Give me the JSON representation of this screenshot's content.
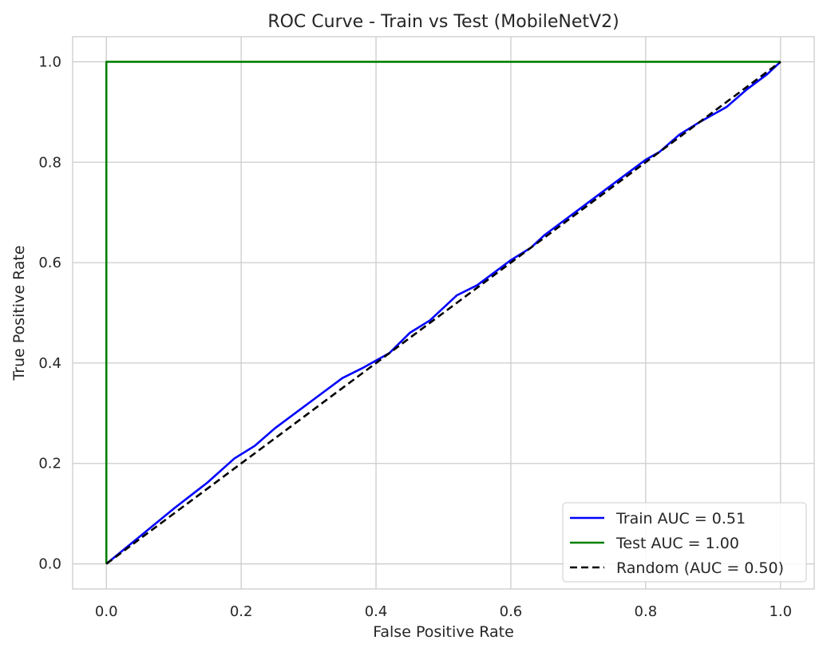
{
  "chart_data": {
    "type": "line",
    "title": "ROC Curve - Train vs Test (MobileNetV2)",
    "xlabel": "False Positive Rate",
    "ylabel": "True Positive Rate",
    "xlim": [
      -0.05,
      1.05
    ],
    "ylim": [
      -0.05,
      1.05
    ],
    "xticks": [
      0.0,
      0.2,
      0.4,
      0.6,
      0.8,
      1.0
    ],
    "yticks": [
      0.0,
      0.2,
      0.4,
      0.6,
      0.8,
      1.0
    ],
    "xtick_labels": [
      "0.0",
      "0.2",
      "0.4",
      "0.6",
      "0.8",
      "1.0"
    ],
    "ytick_labels": [
      "0.0",
      "0.2",
      "0.4",
      "0.6",
      "0.8",
      "1.0"
    ],
    "grid": true,
    "legend_position": "lower-right",
    "series": [
      {
        "name": "Train AUC = 0.51",
        "color": "#0000ff",
        "style": "solid",
        "x": [
          0.0,
          0.05,
          0.1,
          0.15,
          0.19,
          0.22,
          0.25,
          0.28,
          0.3,
          0.35,
          0.38,
          0.4,
          0.42,
          0.45,
          0.48,
          0.5,
          0.52,
          0.55,
          0.58,
          0.6,
          0.63,
          0.65,
          0.68,
          0.7,
          0.72,
          0.75,
          0.78,
          0.8,
          0.82,
          0.85,
          0.88,
          0.9,
          0.92,
          0.95,
          0.98,
          1.0
        ],
        "y": [
          0.0,
          0.055,
          0.11,
          0.162,
          0.21,
          0.235,
          0.27,
          0.3,
          0.32,
          0.37,
          0.39,
          0.405,
          0.42,
          0.46,
          0.485,
          0.51,
          0.535,
          0.555,
          0.585,
          0.605,
          0.63,
          0.655,
          0.685,
          0.705,
          0.725,
          0.755,
          0.785,
          0.805,
          0.82,
          0.855,
          0.88,
          0.895,
          0.91,
          0.945,
          0.975,
          1.0
        ]
      },
      {
        "name": "Test AUC = 1.00",
        "color": "#008000",
        "style": "solid",
        "x": [
          0.0,
          0.0,
          1.0
        ],
        "y": [
          0.0,
          1.0,
          1.0
        ]
      },
      {
        "name": "Random (AUC = 0.50)",
        "color": "#000000",
        "style": "dashed",
        "x": [
          0.0,
          1.0
        ],
        "y": [
          0.0,
          1.0
        ]
      }
    ]
  }
}
